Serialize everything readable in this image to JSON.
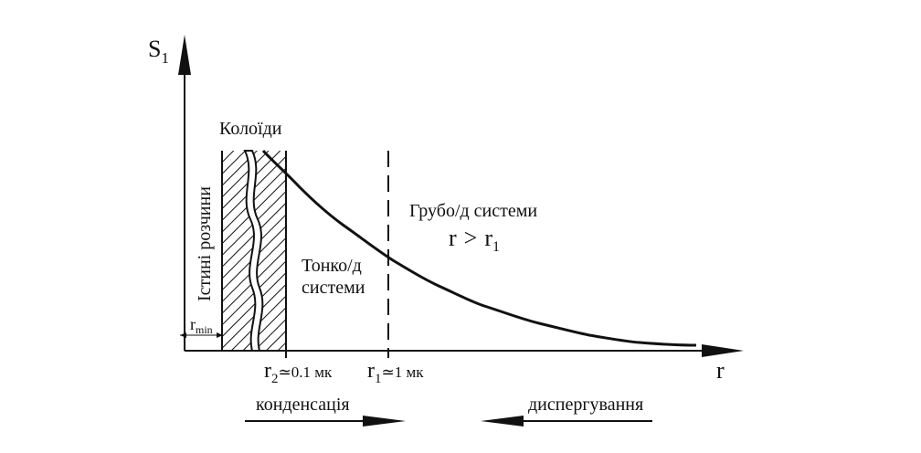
{
  "axes": {
    "y_label": "S",
    "y_label_sub": "1",
    "x_label": "r"
  },
  "regions": {
    "colloids": "Колоїди",
    "true_solutions": "Істині розчини",
    "fine_line1": "Тонко/д",
    "fine_line2": "системи",
    "coarse": "Грубо/д системи"
  },
  "conditions": {
    "coarse_r": "r",
    "coarse_gt": ">",
    "coarse_r1": "r",
    "coarse_r1_sub": "1"
  },
  "markers": {
    "rmin_r": "r",
    "rmin_sub": "min",
    "r2_r": "r",
    "r2_sub": "2",
    "r2_value": "≃0.1 мк",
    "r1_r": "r",
    "r1_sub": "1",
    "r1_value": "≃1 мк"
  },
  "processes": {
    "condensation": "конденсація",
    "dispersion": "диспергування"
  },
  "colors": {
    "ink": "#111111",
    "background": "#ffffff"
  }
}
